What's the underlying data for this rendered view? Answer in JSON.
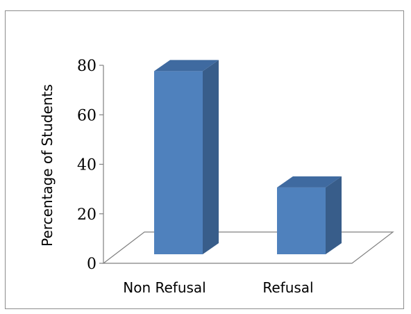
{
  "chart_data": {
    "type": "bar",
    "style": "3d",
    "title": "",
    "xlabel": "",
    "ylabel": "Percentage of Students",
    "categories": [
      "Non Refusal",
      "Refusal"
    ],
    "values": [
      74,
      27
    ],
    "ylim": [
      0,
      80
    ],
    "yticks": [
      "0",
      "20",
      "40",
      "60",
      "80"
    ],
    "legend": "none",
    "grid": false,
    "colors": {
      "bar_front": "#4f81bd",
      "bar_side": "#385d8a",
      "bar_top": "#3f6aa0",
      "floor": "#808080"
    }
  }
}
